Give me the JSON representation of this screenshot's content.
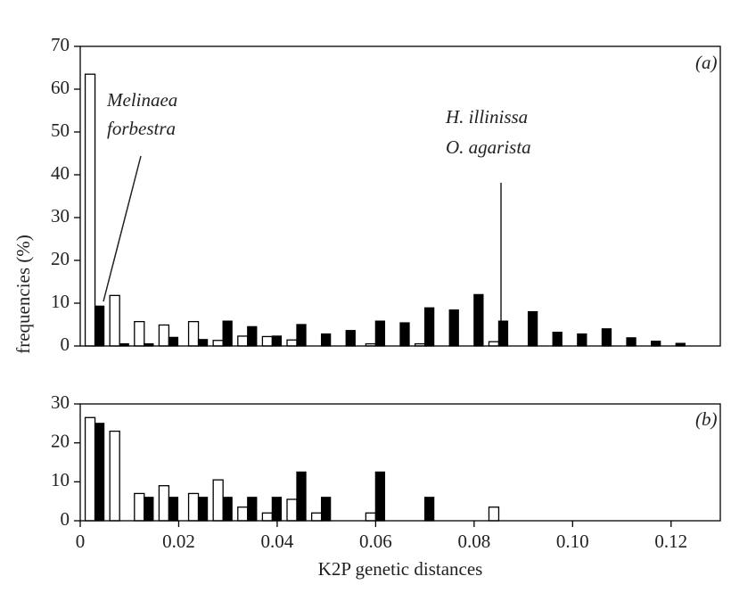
{
  "chart_data": [
    {
      "type": "bar",
      "ylabel": "frequencies (%)",
      "annotations": [
        "Melinaea",
        "forbestra",
        "H. illinissa",
        "O. agarista",
        "(a)"
      ],
      "x": [
        0.003,
        0.008,
        0.013,
        0.018,
        0.024,
        0.029,
        0.034,
        0.039,
        0.044,
        0.049,
        0.054,
        0.06,
        0.065,
        0.07,
        0.075,
        0.08,
        0.085,
        0.091,
        0.096,
        0.101,
        0.106,
        0.111,
        0.116,
        0.121
      ],
      "series": [
        {
          "color": "#ffffff",
          "values": [
            63.5,
            11.8,
            5.7,
            4.9,
            5.7,
            1.3,
            2.3,
            2.2,
            1.4,
            0,
            0,
            0.5,
            0,
            0.5,
            0,
            0,
            1,
            0,
            0,
            0,
            0,
            0,
            0,
            0
          ]
        },
        {
          "color": "#000000",
          "values": [
            9.3,
            0.5,
            0.5,
            2,
            1.5,
            5.8,
            4.5,
            2.3,
            5,
            2.8,
            3.6,
            5.8,
            5.4,
            8.9,
            8.4,
            12,
            5.8,
            8,
            3.2,
            2.8,
            4,
            1.9,
            1.1,
            0.6
          ]
        }
      ],
      "xlim": [
        0,
        0.13
      ],
      "ylim": [
        0,
        70
      ],
      "yticks": [
        0,
        10,
        20,
        30,
        40,
        50,
        60,
        70
      ]
    },
    {
      "type": "bar",
      "xlabel": "K2P genetic distances",
      "annotations": [
        "(b)"
      ],
      "x": [
        0.003,
        0.008,
        0.013,
        0.018,
        0.024,
        0.029,
        0.034,
        0.039,
        0.044,
        0.049,
        0.054,
        0.06,
        0.065,
        0.07,
        0.075,
        0.08,
        0.085,
        0.091,
        0.096,
        0.101,
        0.106,
        0.111,
        0.116,
        0.121
      ],
      "series": [
        {
          "color": "#ffffff",
          "values": [
            26.5,
            23,
            7,
            9,
            7,
            10.5,
            3.5,
            2,
            5.5,
            2,
            0,
            2,
            0,
            0,
            0,
            0,
            3.5,
            0,
            0,
            0,
            0,
            0,
            0,
            0
          ]
        },
        {
          "color": "#000000",
          "values": [
            25,
            0,
            6,
            6,
            6,
            6,
            6,
            6,
            12.5,
            6,
            0,
            12.5,
            0,
            6,
            0,
            0,
            0,
            0,
            0,
            0,
            0,
            0,
            0,
            0
          ]
        }
      ],
      "xlim": [
        0,
        0.13
      ],
      "ylim": [
        0,
        30
      ],
      "yticks": [
        0,
        10,
        20,
        30
      ],
      "xticks": [
        0,
        0.02,
        0.04,
        0.06,
        0.08,
        {
          "value": 0.1,
          "label": "0.10"
        },
        0.12
      ]
    }
  ]
}
